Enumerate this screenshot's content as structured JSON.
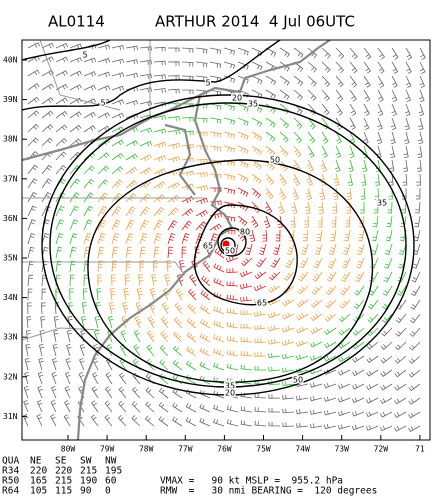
{
  "header": {
    "storm_id": "AL0114",
    "title": "ARTHUR 2014  4 Jul 06UTC"
  },
  "map": {
    "lat_labels": [
      "40N",
      "39N",
      "38N",
      "37N",
      "36N",
      "35N",
      "34N",
      "33N",
      "32N",
      "31N"
    ],
    "lon_labels": [
      "80W",
      "79W",
      "78W",
      "77W",
      "76W",
      "75W",
      "74W",
      "73W",
      "72W",
      "71"
    ],
    "contour_labels": [
      "5",
      "5",
      "5",
      "20",
      "35",
      "50",
      "35",
      "65",
      "80",
      "50",
      "65",
      "50",
      "35",
      "20"
    ]
  },
  "table": {
    "header": [
      "QUA",
      "NE",
      "SE",
      "SW",
      "NW"
    ],
    "rows": [
      [
        "R34",
        "220",
        "220",
        "215",
        "195"
      ],
      [
        "R50",
        "165",
        "215",
        "190",
        "60"
      ],
      [
        "R64",
        "105",
        "115",
        "90",
        "0"
      ]
    ]
  },
  "summary": [
    "VMAX =   90 kt MSLP =  955.2 hPa",
    "RMW  =   30 nmi BEARING =  120 degrees"
  ]
}
